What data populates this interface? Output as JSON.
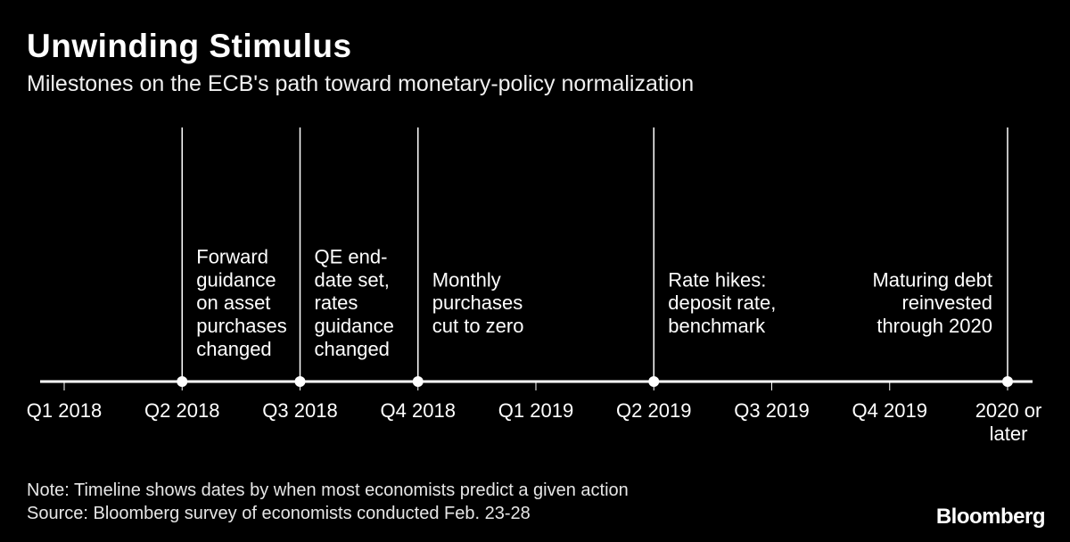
{
  "header": {
    "title": "Unwinding Stimulus",
    "subtitle": "Milestones on the ECB's path toward monetary-policy normalization"
  },
  "chart_data": {
    "type": "timeline",
    "periods": [
      [
        "Q1 2018"
      ],
      [
        "Q2 2018"
      ],
      [
        "Q3 2018"
      ],
      [
        "Q4 2018"
      ],
      [
        "Q1 2019"
      ],
      [
        "Q2 2019"
      ],
      [
        "Q3 2019"
      ],
      [
        "Q4 2019"
      ],
      [
        "2020 or",
        "later"
      ]
    ],
    "milestones": [
      {
        "period": "Q2 2018",
        "label": [
          "Forward",
          "guidance",
          "on asset",
          "purchases",
          "changed"
        ]
      },
      {
        "period": "Q3 2018",
        "label": [
          "QE end-",
          "date set,",
          "rates",
          "guidance",
          "changed"
        ]
      },
      {
        "period": "Q4 2018",
        "label": [
          "Monthly",
          "purchases",
          "cut to zero"
        ]
      },
      {
        "period": "Q2 2019",
        "label": [
          "Rate hikes:",
          "deposit rate,",
          "benchmark"
        ]
      },
      {
        "period": "2020 or later",
        "label": [
          "Maturing debt",
          "reinvested",
          "through 2020"
        ]
      }
    ]
  },
  "footer": {
    "note": "Note: Timeline shows dates by when most economists predict a given action",
    "source": "Source: Bloomberg survey of economists conducted Feb. 23-28",
    "logo": "Bloomberg"
  }
}
